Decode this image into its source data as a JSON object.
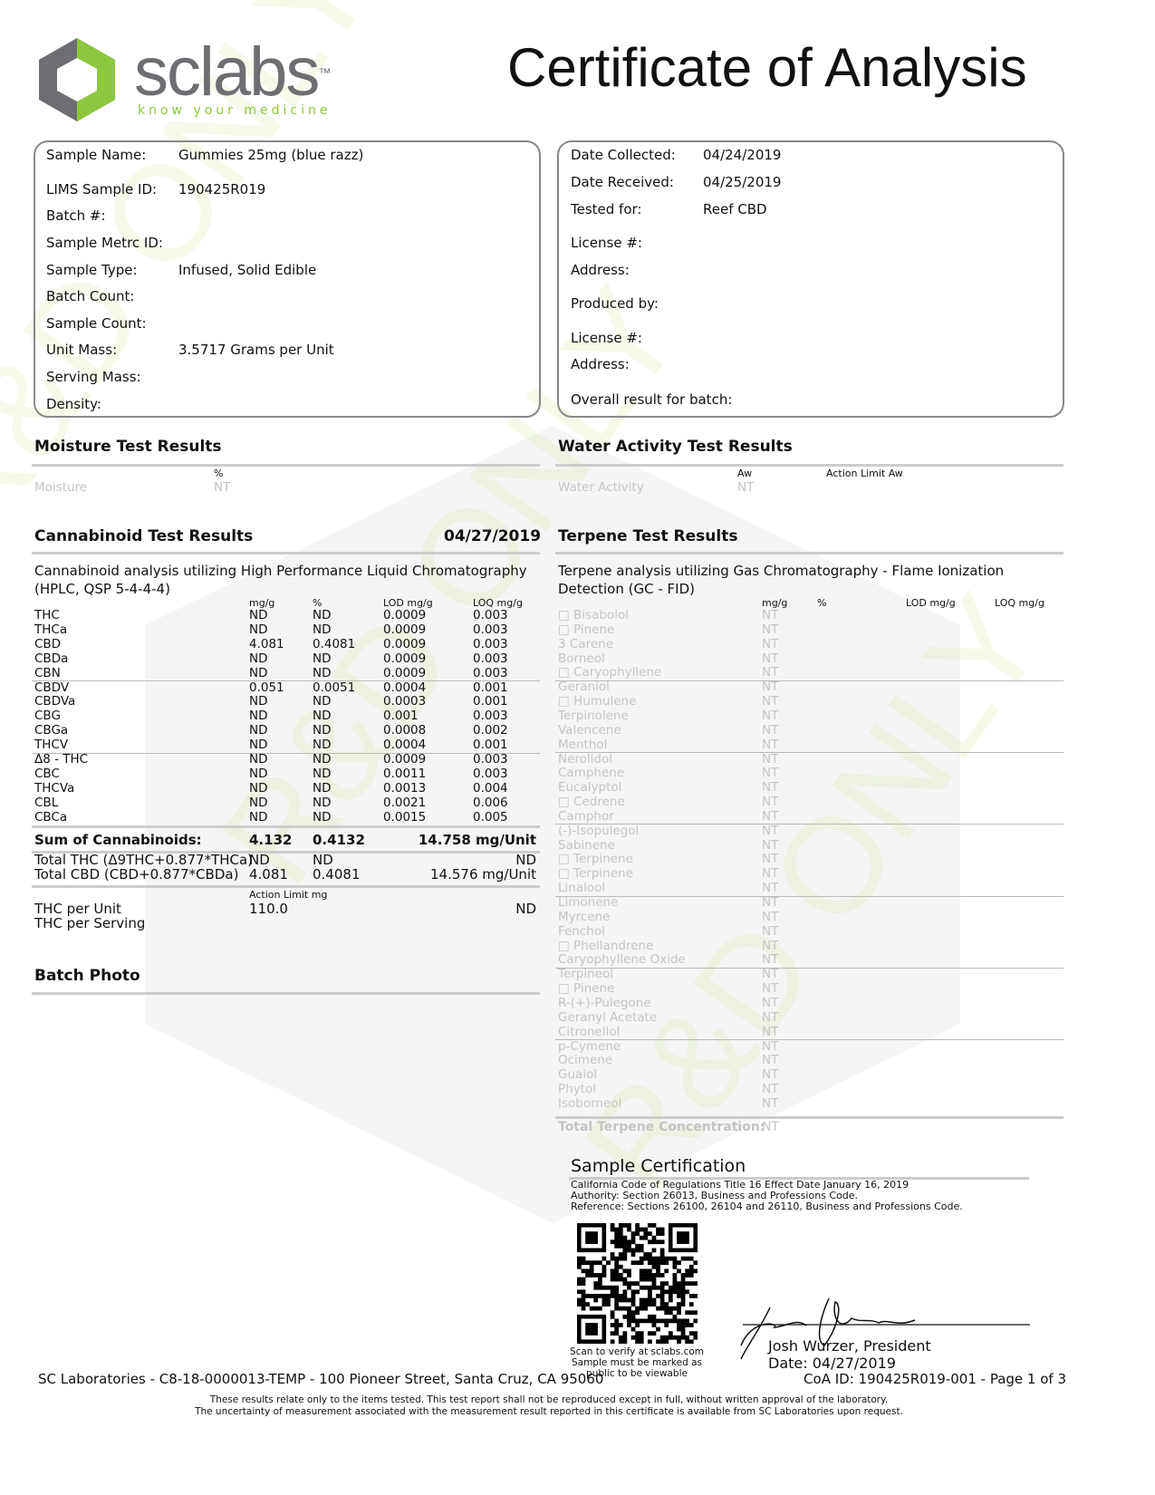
{
  "logo": {
    "brand": "sclabs",
    "tm": "™",
    "tagline": "know your medicine",
    "accent": "#8dc63f",
    "hex_color": "#6d6e71"
  },
  "title": "Certificate of Analysis",
  "sample_info": [
    {
      "label": "Sample Name:",
      "value": "Gummies 25mg (blue razz)"
    },
    {
      "label": "LIMS Sample ID:",
      "value": "190425R019"
    },
    {
      "label": "Batch #:",
      "value": ""
    },
    {
      "label": "Sample Metrc ID:",
      "value": ""
    },
    {
      "label": "Sample Type:",
      "value": "Infused, Solid Edible"
    },
    {
      "label": "Batch Count:",
      "value": ""
    },
    {
      "label": "Sample Count:",
      "value": ""
    },
    {
      "label": "Unit Mass:",
      "value": "3.5717 Grams per Unit"
    },
    {
      "label": "Serving Mass:",
      "value": ""
    },
    {
      "label": "Density:",
      "value": ""
    }
  ],
  "client_info": [
    {
      "label": "Date Collected:",
      "value": "04/24/2019"
    },
    {
      "label": "Date Received:",
      "value": "04/25/2019"
    },
    {
      "label": "Tested for:",
      "value": "Reef CBD"
    },
    {
      "label": "License #:",
      "value": ""
    },
    {
      "label": "Address:",
      "value": ""
    },
    {
      "label": "Produced by:",
      "value": ""
    },
    {
      "label": "License #:",
      "value": ""
    },
    {
      "label": "Address:",
      "value": ""
    },
    {
      "label": "Overall result for batch:",
      "value": ""
    }
  ],
  "moisture": {
    "title": "Moisture Test Results",
    "unit": "%",
    "name": "Moisture",
    "value": "NT"
  },
  "water_activity": {
    "title": "Water Activity Test Results",
    "unit": "Aw",
    "limit_header": "Action Limit Aw",
    "name": "Water Activity",
    "value": "NT"
  },
  "cannabinoids": {
    "title": "Cannabinoid Test Results",
    "date": "04/27/2019",
    "description": "Cannabinoid analysis utilizing High Performance Liquid Chromatography",
    "description2": "(HPLC, QSP 5-4-4-4)",
    "columns": [
      "mg/g",
      "%",
      "LOD mg/g",
      "LOQ mg/g"
    ],
    "rows": [
      [
        "THC",
        "ND",
        "ND",
        "0.0009",
        "0.003"
      ],
      [
        "THCa",
        "ND",
        "ND",
        "0.0009",
        "0.003"
      ],
      [
        "CBD",
        "4.081",
        "0.4081",
        "0.0009",
        "0.003"
      ],
      [
        "CBDa",
        "ND",
        "ND",
        "0.0009",
        "0.003"
      ],
      [
        "CBN",
        "ND",
        "ND",
        "0.0009",
        "0.003"
      ],
      [
        "CBDV",
        "0.051",
        "0.0051",
        "0.0004",
        "0.001"
      ],
      [
        "CBDVa",
        "ND",
        "ND",
        "0.0003",
        "0.001"
      ],
      [
        "CBG",
        "ND",
        "ND",
        "0.001",
        "0.003"
      ],
      [
        "CBGa",
        "ND",
        "ND",
        "0.0008",
        "0.002"
      ],
      [
        "THCV",
        "ND",
        "ND",
        "0.0004",
        "0.001"
      ],
      [
        "Δ8 - THC",
        "ND",
        "ND",
        "0.0009",
        "0.003"
      ],
      [
        "CBC",
        "ND",
        "ND",
        "0.0011",
        "0.003"
      ],
      [
        "THCVa",
        "ND",
        "ND",
        "0.0013",
        "0.004"
      ],
      [
        "CBL",
        "ND",
        "ND",
        "0.0021",
        "0.006"
      ],
      [
        "CBCa",
        "ND",
        "ND",
        "0.0015",
        "0.005"
      ]
    ],
    "sum": {
      "label": "Sum of Cannabinoids:",
      "mg_g": "4.132",
      "pct": "0.4132",
      "per_unit": "14.758 mg/Unit"
    },
    "total_thc": {
      "label": "Total THC (Δ9THC+0.877*THCa)",
      "mg_g": "ND",
      "pct": "ND",
      "per_unit": "ND"
    },
    "total_cbd": {
      "label": "Total CBD (CBD+0.877*CBDa)",
      "mg_g": "4.081",
      "pct": "0.4081",
      "per_unit": "14.576 mg/Unit"
    },
    "action_limit_header": "Action Limit mg",
    "thc_per_unit": {
      "label": "THC per Unit",
      "limit": "110.0",
      "value": "ND"
    },
    "thc_per_serving": {
      "label": "THC per Serving"
    }
  },
  "batch_photo": {
    "title": "Batch Photo"
  },
  "terpenes": {
    "title": "Terpene Test Results",
    "description": "Terpene analysis utilizing Gas Chromatography - Flame Ionization",
    "description2": "Detection (GC - FID)",
    "columns": [
      "mg/g",
      "%",
      "LOD mg/g",
      "LOQ mg/g"
    ],
    "rows": [
      [
        "□ Bisabolol",
        "NT"
      ],
      [
        "□ Pinene",
        "NT"
      ],
      [
        "3 Carene",
        "NT"
      ],
      [
        "Borneol",
        "NT"
      ],
      [
        "□ Caryophyllene",
        "NT"
      ],
      [
        "Geraniol",
        "NT"
      ],
      [
        "□ Humulene",
        "NT"
      ],
      [
        "Terpinolene",
        "NT"
      ],
      [
        "Valencene",
        "NT"
      ],
      [
        "Menthol",
        "NT"
      ],
      [
        "Nerolidol",
        "NT"
      ],
      [
        "Camphene",
        "NT"
      ],
      [
        "Eucalyptol",
        "NT"
      ],
      [
        "□ Cedrene",
        "NT"
      ],
      [
        "Camphor",
        "NT"
      ],
      [
        "(-)-Isopulegol",
        "NT"
      ],
      [
        "Sabinene",
        "NT"
      ],
      [
        "□ Terpinene",
        "NT"
      ],
      [
        "□ Terpinene",
        "NT"
      ],
      [
        "Linalool",
        "NT"
      ],
      [
        "Limonene",
        "NT"
      ],
      [
        "Myrcene",
        "NT"
      ],
      [
        "Fenchol",
        "NT"
      ],
      [
        "□ Phellandrene",
        "NT"
      ],
      [
        "Caryophyllene Oxide",
        "NT"
      ],
      [
        "Terpineol",
        "NT"
      ],
      [
        "□ Pinene",
        "NT"
      ],
      [
        "R-(+)-Pulegone",
        "NT"
      ],
      [
        "Geranyl Acetate",
        "NT"
      ],
      [
        "Citronellol",
        "NT"
      ],
      [
        "p-Cymene",
        "NT"
      ],
      [
        "Ocimene",
        "NT"
      ],
      [
        "Guaiol",
        "NT"
      ],
      [
        "Phytol",
        "NT"
      ],
      [
        "Isoborneol",
        "NT"
      ]
    ],
    "total_label": "Total Terpene Concentration:",
    "total_value": "NT"
  },
  "certification": {
    "title": "Sample Certification",
    "lines": [
      "California Code of Regulations Title 16 Effect Date January 16, 2019",
      "Authority: Section 26013, Business and Professions Code.",
      "Reference: Sections 26100, 26104 and 26110, Business and Professions Code."
    ],
    "qr_caption": [
      "Scan to verify at sclabs.com",
      "Sample must be marked as",
      "public to be viewable"
    ],
    "signer": "Josh Wurzer, President",
    "date": "Date: 04/27/2019"
  },
  "watermark": "R&D ONLY",
  "footer": {
    "address": "SC Laboratories - C8-18-0000013-TEMP - 100 Pioneer Street, Santa Cruz, CA 95060",
    "coa": "CoA ID: 190425R019-001 - Page 1 of 3",
    "disclaimer1": "These results relate only to the items tested. This test report shall not be reproduced except in full, without written approval of the laboratory.",
    "disclaimer2": "The uncertainty of measurement associated with the measurement result reported in this certificate is available from SC Laboratories upon request."
  }
}
